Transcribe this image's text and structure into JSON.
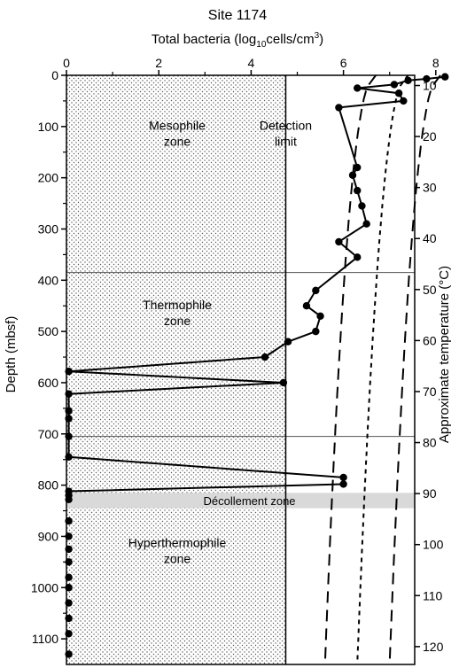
{
  "chart_data": {
    "type": "scatter",
    "title": "Site 1174",
    "xlabel_prefix": "Total bacteria (log",
    "xlabel_sub": "10",
    "xlabel_mid": "cells/cm",
    "xlabel_sup": "3",
    "xlabel_suffix": ")",
    "ylabel": "Depth (mbsf)",
    "y2label": "Approximate temperature (°C)",
    "xlim": [
      0,
      9
    ],
    "ylim": [
      0,
      1150
    ],
    "x_ticks": [
      "0",
      "2",
      "4",
      "6",
      "8"
    ],
    "y_ticks": [
      "0",
      "100",
      "200",
      "300",
      "400",
      "500",
      "600",
      "700",
      "800",
      "900",
      "1000",
      "1100"
    ],
    "y2_ticks": [
      "10",
      "20",
      "30",
      "40",
      "50",
      "60",
      "70",
      "80",
      "90",
      "100",
      "110",
      "120"
    ],
    "detection_limit": 4.75,
    "zone_boundaries": [
      385,
      705
    ],
    "decollement": {
      "label": "Décollement zone",
      "top": 815,
      "bottom": 845
    },
    "zone_labels": [
      {
        "line1": "Mesophile",
        "line2": "zone",
        "x": 2.4,
        "depth": 120
      },
      {
        "line1": "Detection",
        "line2": "limit",
        "x": 4.75,
        "depth": 120
      },
      {
        "line1": "Thermophile",
        "line2": "zone",
        "x": 2.4,
        "depth": 470
      },
      {
        "line1": "Hyperthermophile",
        "line2": "zone",
        "x": 2.4,
        "depth": 935
      }
    ],
    "series": [
      {
        "points": [
          [
            8.2,
            3
          ],
          [
            7.8,
            7
          ],
          [
            7.4,
            10
          ],
          [
            7.1,
            18
          ],
          [
            6.3,
            25
          ],
          [
            7.2,
            35
          ],
          [
            7.3,
            50
          ],
          [
            5.9,
            63
          ],
          [
            6.3,
            180
          ],
          [
            6.2,
            195
          ],
          [
            6.3,
            225
          ],
          [
            6.4,
            255
          ],
          [
            6.5,
            290
          ],
          [
            5.9,
            325
          ],
          [
            6.3,
            355
          ],
          [
            5.4,
            420
          ],
          [
            5.2,
            450
          ],
          [
            5.5,
            470
          ],
          [
            5.4,
            500
          ],
          [
            4.8,
            520
          ],
          [
            4.3,
            550
          ],
          [
            0.05,
            578
          ],
          [
            4.7,
            600
          ],
          [
            0.05,
            622
          ],
          [
            0.05,
            655
          ],
          [
            0.05,
            670
          ],
          [
            0.05,
            705
          ],
          [
            0.05,
            745
          ],
          [
            6.0,
            785
          ],
          [
            6.0,
            798
          ],
          [
            0.05,
            812
          ],
          [
            0.05,
            820
          ],
          [
            0.05,
            828
          ]
        ],
        "scatter_only": [
          [
            0.05,
            870
          ],
          [
            0.05,
            900
          ],
          [
            0.05,
            925
          ],
          [
            0.05,
            950
          ],
          [
            0.05,
            980
          ],
          [
            0.05,
            1000
          ],
          [
            0.05,
            1030
          ],
          [
            0.05,
            1060
          ],
          [
            0.05,
            1090
          ],
          [
            0.05,
            1130
          ]
        ]
      }
    ],
    "curves": [
      {
        "style": "long-dash",
        "x_top": 6.7,
        "x_bottom": 5.6
      },
      {
        "style": "short-dash",
        "x_top": 7.4,
        "x_bottom": 6.3
      },
      {
        "style": "long-dash",
        "x_top": 8.1,
        "x_bottom": 7.0
      }
    ]
  }
}
